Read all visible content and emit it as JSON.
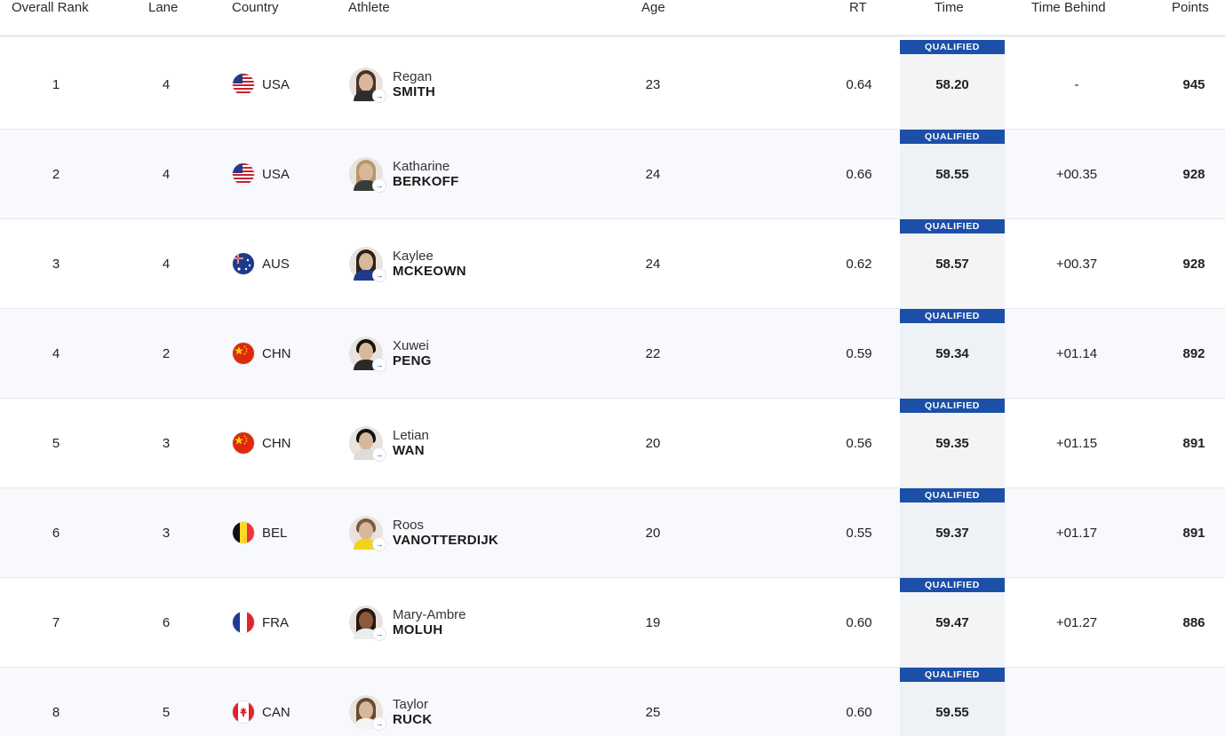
{
  "columns": {
    "rank": "Overall Rank",
    "lane": "Lane",
    "country": "Country",
    "athlete": "Athlete",
    "age": "Age",
    "rt": "RT",
    "time": "Time",
    "behind": "Time Behind",
    "points": "Points"
  },
  "colors": {
    "qualified_badge": "#1c4fa8",
    "header_divider": "#e9ecf1",
    "alt_row": "#f7f9fc"
  },
  "rows": [
    {
      "rank": "1",
      "lane": "4",
      "country": "USA",
      "flag": "usa-flag-icon",
      "first": "Regan",
      "last": "SMITH",
      "age": "23",
      "rt": "0.64",
      "status": "QUALIFIED",
      "time": "58.20",
      "behind": "-",
      "points": "945"
    },
    {
      "rank": "2",
      "lane": "4",
      "country": "USA",
      "flag": "usa-flag-icon",
      "first": "Katharine",
      "last": "BERKOFF",
      "age": "24",
      "rt": "0.66",
      "status": "QUALIFIED",
      "time": "58.55",
      "behind": "+00.35",
      "points": "928"
    },
    {
      "rank": "3",
      "lane": "4",
      "country": "AUS",
      "flag": "aus-flag-icon",
      "first": "Kaylee",
      "last": "MCKEOWN",
      "age": "24",
      "rt": "0.62",
      "status": "QUALIFIED",
      "time": "58.57",
      "behind": "+00.37",
      "points": "928"
    },
    {
      "rank": "4",
      "lane": "2",
      "country": "CHN",
      "flag": "chn-flag-icon",
      "first": "Xuwei",
      "last": "PENG",
      "age": "22",
      "rt": "0.59",
      "status": "QUALIFIED",
      "time": "59.34",
      "behind": "+01.14",
      "points": "892"
    },
    {
      "rank": "5",
      "lane": "3",
      "country": "CHN",
      "flag": "chn-flag-icon",
      "first": "Letian",
      "last": "WAN",
      "age": "20",
      "rt": "0.56",
      "status": "QUALIFIED",
      "time": "59.35",
      "behind": "+01.15",
      "points": "891"
    },
    {
      "rank": "6",
      "lane": "3",
      "country": "BEL",
      "flag": "bel-flag-icon",
      "first": "Roos",
      "last": "VANOTTERDIJK",
      "age": "20",
      "rt": "0.55",
      "status": "QUALIFIED",
      "time": "59.37",
      "behind": "+01.17",
      "points": "891"
    },
    {
      "rank": "7",
      "lane": "6",
      "country": "FRA",
      "flag": "fra-flag-icon",
      "first": "Mary-Ambre",
      "last": "MOLUH",
      "age": "19",
      "rt": "0.60",
      "status": "QUALIFIED",
      "time": "59.47",
      "behind": "+01.27",
      "points": "886"
    },
    {
      "rank": "8",
      "lane": "5",
      "country": "CAN",
      "flag": "can-flag-icon",
      "first": "Taylor",
      "last": "RUCK",
      "age": "25",
      "rt": "0.60",
      "status": "QUALIFIED",
      "time": "59.55",
      "behind": "",
      "points": ""
    }
  ]
}
